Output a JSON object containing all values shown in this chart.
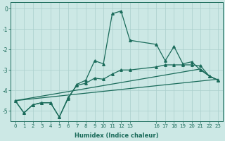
{
  "xlabel": "Humidex (Indice chaleur)",
  "ylabel": "",
  "background_color": "#cce8e5",
  "grid_color": "#aacfcc",
  "line_color": "#1a6b5a",
  "xlim": [
    -0.5,
    23.5
  ],
  "ylim": [
    -5.5,
    0.3
  ],
  "yticks": [
    0,
    -1,
    -2,
    -3,
    -4,
    -5
  ],
  "xticks": [
    0,
    1,
    2,
    3,
    4,
    5,
    6,
    7,
    8,
    9,
    10,
    11,
    12,
    13,
    16,
    17,
    18,
    19,
    20,
    21,
    22,
    23
  ],
  "series": [
    {
      "x": [
        0,
        1,
        2,
        3,
        4,
        5,
        6,
        7,
        8,
        9,
        10,
        11,
        12,
        13,
        16,
        17,
        18,
        19,
        20,
        21,
        22,
        23
      ],
      "y": [
        -4.5,
        -5.1,
        -4.7,
        -4.6,
        -4.6,
        -5.3,
        -4.4,
        -3.7,
        -3.5,
        -2.55,
        -2.7,
        -0.25,
        -0.12,
        -1.55,
        -1.75,
        -2.55,
        -1.85,
        -2.7,
        -2.6,
        -3.0,
        -3.3,
        -3.5
      ],
      "marker": "^",
      "linestyle": "-",
      "linewidth": 0.9,
      "markersize": 2.5
    },
    {
      "x": [
        0,
        1,
        2,
        3,
        4,
        5,
        6,
        7,
        8,
        9,
        10,
        11,
        12,
        13,
        16,
        17,
        18,
        19,
        20,
        21,
        22,
        23
      ],
      "y": [
        -4.5,
        -5.1,
        -4.7,
        -4.6,
        -4.6,
        -5.3,
        -4.35,
        -3.75,
        -3.65,
        -3.4,
        -3.45,
        -3.2,
        -3.0,
        -3.0,
        -2.85,
        -2.75,
        -2.75,
        -2.75,
        -2.75,
        -2.8,
        -3.3,
        -3.5
      ],
      "marker": "^",
      "linestyle": "-",
      "linewidth": 0.9,
      "markersize": 2.5
    },
    {
      "x": [
        0,
        21,
        22,
        23
      ],
      "y": [
        -4.5,
        -2.95,
        -3.3,
        -3.5
      ],
      "marker": null,
      "linestyle": "-",
      "linewidth": 0.9,
      "markersize": 0
    },
    {
      "x": [
        0,
        23
      ],
      "y": [
        -4.5,
        -3.45
      ],
      "marker": null,
      "linestyle": "-",
      "linewidth": 0.9,
      "markersize": 0
    }
  ]
}
